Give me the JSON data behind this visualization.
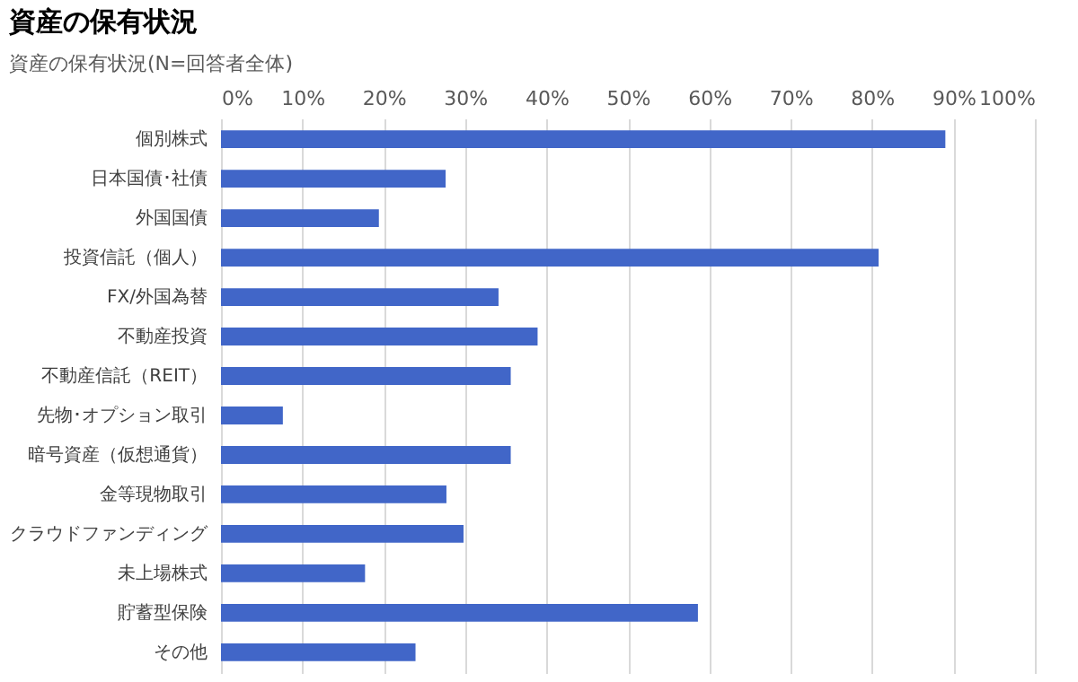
{
  "chart_data": {
    "type": "bar",
    "orientation": "horizontal",
    "title": "資産の保有状況",
    "subtitle": "資産の保有状況(N=回答者全体)",
    "categories": [
      "個別株式",
      "日本国債･社債",
      "外国国債",
      "投資信託（個人）",
      "FX/外国為替",
      "不動産投資",
      "不動産信託（REIT）",
      "先物･オプション取引",
      "暗号資産（仮想通貨）",
      "金等現物取引",
      "クラウドファンディング",
      "未上場株式",
      "貯蓄型保険",
      "その他"
    ],
    "values": [
      89,
      27.6,
      19.4,
      80.8,
      34.1,
      38.9,
      35.6,
      7.6,
      35.6,
      27.7,
      29.8,
      17.7,
      58.6,
      23.9
    ],
    "color": "#4166c8",
    "xlim": [
      0,
      100
    ],
    "xticks": [
      {
        "value": 0,
        "label": "0%"
      },
      {
        "value": 10,
        "label": "10%"
      },
      {
        "value": 20,
        "label": "20%"
      },
      {
        "value": 30,
        "label": "30%"
      },
      {
        "value": 40,
        "label": "40%"
      },
      {
        "value": 50,
        "label": "50%"
      },
      {
        "value": 60,
        "label": "60%"
      },
      {
        "value": 70,
        "label": "70%"
      },
      {
        "value": 80,
        "label": "80%"
      },
      {
        "value": 90,
        "label": "90%"
      },
      {
        "value": 100,
        "label": "100%"
      }
    ],
    "grid": "x"
  }
}
